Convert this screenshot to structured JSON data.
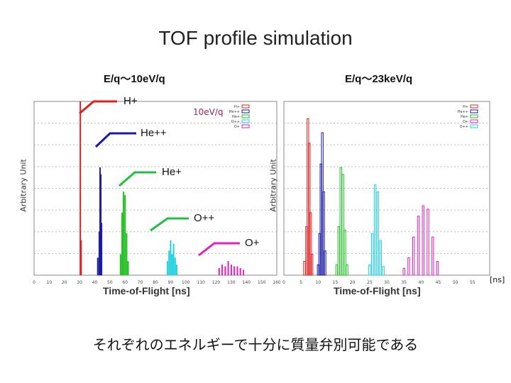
{
  "title": "TOF profile  simulation",
  "caption": "それぞれのエネルギーで十分に質量弁別可能である",
  "left_condition": "E/q～10eV/q",
  "right_condition": "E/q～23keV/q",
  "species_callouts": [
    "H+",
    "He++",
    "He+",
    "O++",
    "O+"
  ],
  "unit_label": "[ns]",
  "colors": {
    "H+": "#e02020",
    "He++": "#1a1aa0",
    "He+": "#20c020",
    "O++": "#20d0e0",
    "O+": "#e020c0",
    "callout_H+": "#e02020",
    "callout_He++": "#1a1aa0",
    "callout_He+": "#20c040",
    "callout_O++": "#20c040",
    "callout_O+": "#e020c0"
  },
  "chart_data": [
    {
      "type": "bar",
      "title": "10eV/q",
      "xlabel": "Time-of-Flight  [ns]",
      "ylabel": "Arbitrary Unit",
      "xlim": [
        0,
        160
      ],
      "ylim": [
        0,
        1
      ],
      "x_ticks": [
        "0",
        "10",
        "20",
        "30",
        "40",
        "50",
        "60",
        "70",
        "80",
        "90",
        "100",
        "110",
        "120",
        "130",
        "140",
        "150",
        "160"
      ],
      "legend": [
        "H+",
        "He++",
        "He+",
        "O++",
        "O+"
      ],
      "series": [
        {
          "name": "H+",
          "peaks": [
            [
              30.5,
              1.0
            ],
            [
              31.0,
              0.2
            ]
          ]
        },
        {
          "name": "He++",
          "peaks": [
            [
              42.0,
              0.1
            ],
            [
              43.0,
              0.25
            ],
            [
              43.5,
              0.62
            ],
            [
              44.0,
              0.58
            ],
            [
              44.5,
              0.3
            ]
          ]
        },
        {
          "name": "He+",
          "peaks": [
            [
              57.0,
              0.12
            ],
            [
              58.0,
              0.36
            ],
            [
              59.0,
              0.48
            ],
            [
              60.0,
              0.46
            ],
            [
              61.0,
              0.24
            ],
            [
              62.0,
              0.08
            ]
          ]
        },
        {
          "name": "O++",
          "peaks": [
            [
              88.0,
              0.08
            ],
            [
              89.0,
              0.14
            ],
            [
              90.0,
              0.2
            ],
            [
              91.0,
              0.12
            ],
            [
              92.0,
              0.18
            ],
            [
              93.0,
              0.1
            ],
            [
              94.0,
              0.06
            ]
          ]
        },
        {
          "name": "O+",
          "peaks": [
            [
              122.0,
              0.04
            ],
            [
              124.0,
              0.06
            ],
            [
              126.0,
              0.05
            ],
            [
              128.0,
              0.08
            ],
            [
              130.0,
              0.06
            ],
            [
              132.0,
              0.05
            ],
            [
              134.0,
              0.05
            ],
            [
              136.0,
              0.04
            ],
            [
              138.0,
              0.03
            ]
          ]
        }
      ]
    },
    {
      "type": "bar",
      "title": "23keV/q",
      "xlabel": "Time-of-Flight  [ns]",
      "ylabel": "Arbitrary Unit",
      "xlim": [
        0,
        60
      ],
      "ylim": [
        0,
        1
      ],
      "x_ticks": [
        "0",
        "5",
        "10",
        "15",
        "20",
        "25",
        "30",
        "35",
        "40",
        "45",
        "50",
        "55"
      ],
      "legend": [
        "H+",
        "He++",
        "He+",
        "O+",
        "O++"
      ],
      "series": [
        {
          "name": "H+",
          "peaks": [
            [
              6.0,
              0.08
            ],
            [
              6.6,
              0.28
            ],
            [
              7.0,
              0.9
            ],
            [
              7.4,
              0.76
            ],
            [
              7.8,
              0.36
            ],
            [
              8.2,
              0.12
            ]
          ]
        },
        {
          "name": "He++",
          "peaks": [
            [
              10.0,
              0.06
            ],
            [
              10.4,
              0.24
            ],
            [
              10.8,
              0.64
            ],
            [
              11.2,
              0.82
            ],
            [
              11.6,
              0.48
            ],
            [
              12.0,
              0.14
            ]
          ]
        },
        {
          "name": "He+",
          "peaks": [
            [
              15.4,
              0.06
            ],
            [
              16.0,
              0.28
            ],
            [
              16.6,
              0.62
            ],
            [
              17.2,
              0.58
            ],
            [
              17.8,
              0.26
            ],
            [
              18.4,
              0.06
            ]
          ]
        },
        {
          "name": "O++",
          "peaks": [
            [
              25.0,
              0.06
            ],
            [
              25.8,
              0.24
            ],
            [
              26.6,
              0.52
            ],
            [
              27.4,
              0.48
            ],
            [
              28.2,
              0.2
            ],
            [
              29.0,
              0.05
            ]
          ]
        },
        {
          "name": "O+",
          "peaks": [
            [
              35.0,
              0.04
            ],
            [
              36.4,
              0.1
            ],
            [
              37.8,
              0.22
            ],
            [
              39.2,
              0.34
            ],
            [
              40.6,
              0.4
            ],
            [
              42.0,
              0.38
            ],
            [
              43.4,
              0.22
            ],
            [
              44.8,
              0.08
            ]
          ]
        }
      ]
    }
  ]
}
